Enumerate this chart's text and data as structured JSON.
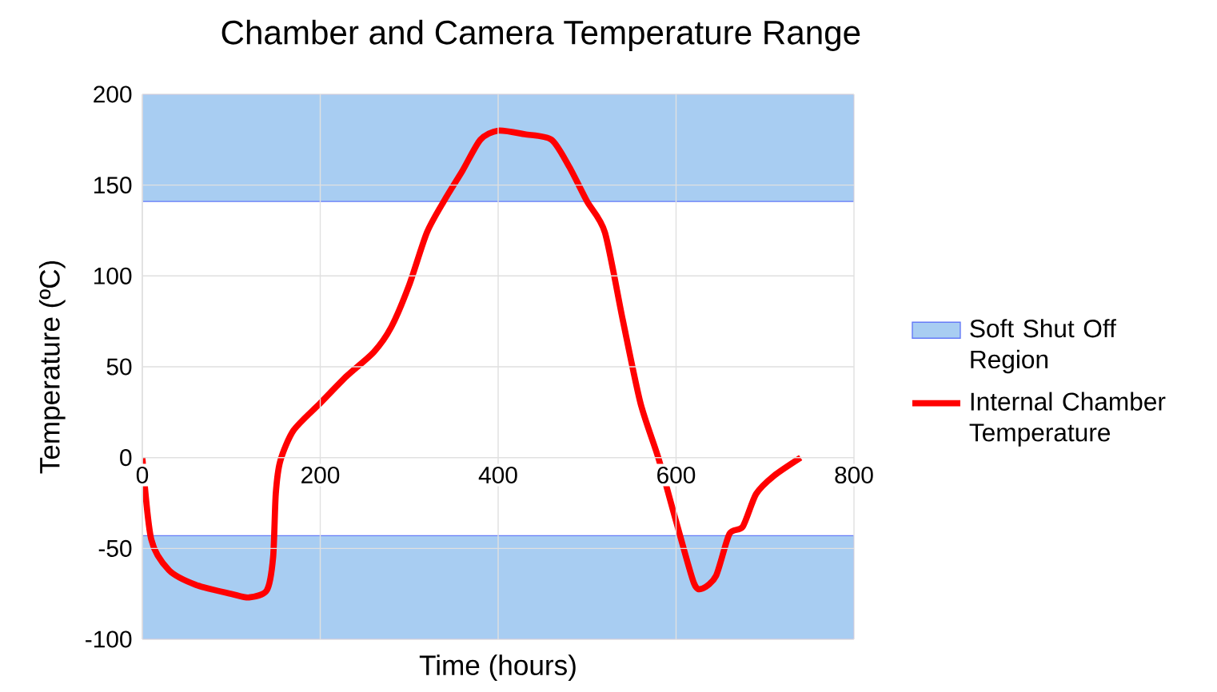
{
  "chart_data": {
    "type": "line",
    "title": "Chamber and Camera Temperature Range",
    "xlabel": "Time (hours)",
    "ylabel": "Temperature (ºC)",
    "xlim": [
      0,
      800
    ],
    "ylim": [
      -100,
      200
    ],
    "xticks": [
      0,
      200,
      400,
      600,
      800
    ],
    "yticks": [
      -100,
      -50,
      0,
      50,
      100,
      150,
      200
    ],
    "grid": true,
    "legend": "right",
    "x": [
      0,
      10,
      30,
      60,
      100,
      120,
      140,
      147,
      150,
      155,
      170,
      200,
      230,
      260,
      280,
      300,
      320,
      340,
      360,
      380,
      400,
      430,
      460,
      480,
      500,
      520,
      540,
      560,
      580,
      600,
      620,
      630,
      645,
      660,
      675,
      690,
      710,
      740
    ],
    "series": [
      {
        "name": "Internal Chamber Temperature",
        "color": "#ff0000",
        "values": [
          0,
          -45,
          -62,
          -70,
          -75,
          -77,
          -73,
          -55,
          -20,
          -2,
          15,
          30,
          45,
          58,
          72,
          95,
          124,
          142,
          158,
          175,
          180,
          178,
          175,
          160,
          141,
          124,
          76,
          30,
          0,
          -35,
          -69,
          -72,
          -65,
          -42,
          -38,
          -20,
          -10,
          0
        ]
      }
    ],
    "bands": [
      {
        "axis": "y",
        "from": 141,
        "to": 200,
        "label": "Soft Shut Off Region",
        "color": "#a8cdf2"
      },
      {
        "axis": "y",
        "from": -100,
        "to": -43,
        "color": "#a8cdf2"
      }
    ]
  }
}
